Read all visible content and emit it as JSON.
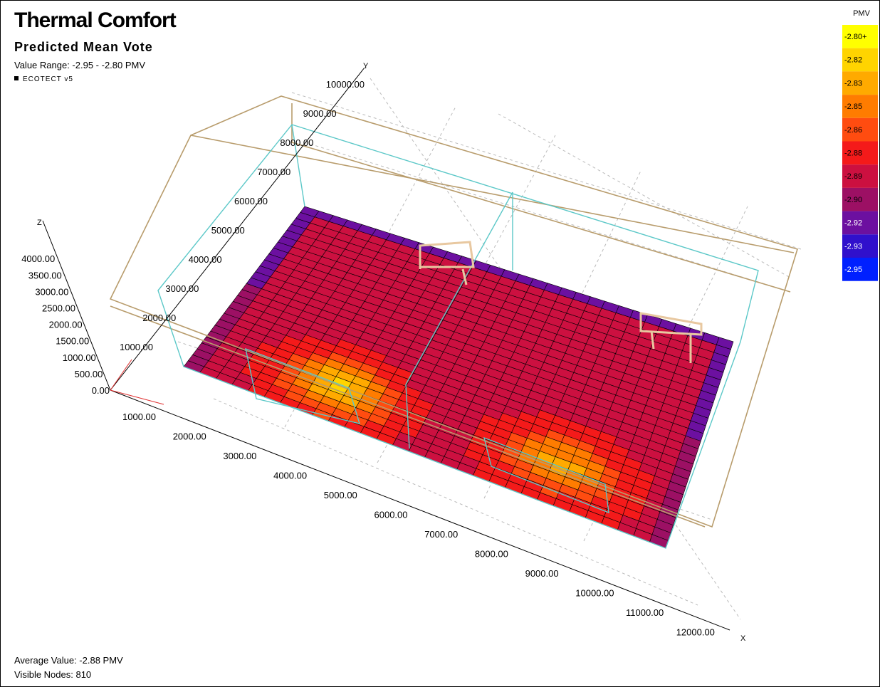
{
  "header": {
    "title": "Thermal Comfort",
    "subtitle": "Predicted Mean Vote",
    "value_range": "Value Range: -2.95 - -2.80 PMV",
    "logo": "ECOTECT v5"
  },
  "legend": {
    "title": "PMV",
    "entries": [
      {
        "label": "-2.80+",
        "color": "#ffff00"
      },
      {
        "label": "-2.82",
        "color": "#ffd400"
      },
      {
        "label": "-2.83",
        "color": "#ffaa00"
      },
      {
        "label": "-2.85",
        "color": "#ff7c00"
      },
      {
        "label": "-2.86",
        "color": "#ff4c10"
      },
      {
        "label": "-2.88",
        "color": "#f41a1a"
      },
      {
        "label": "-2.89",
        "color": "#cc1040"
      },
      {
        "label": "-2.90",
        "color": "#9c1064"
      },
      {
        "label": "-2.92",
        "color": "#6c10a0"
      },
      {
        "label": "-2.93",
        "color": "#3010cc"
      },
      {
        "label": "-2.95",
        "color": "#0020ff"
      }
    ]
  },
  "axes": {
    "x": {
      "name": "X",
      "ticks": [
        "1000.00",
        "2000.00",
        "3000.00",
        "4000.00",
        "5000.00",
        "6000.00",
        "7000.00",
        "8000.00",
        "9000.00",
        "10000.00",
        "11000.00",
        "12000.00"
      ]
    },
    "y": {
      "name": "Y",
      "ticks": [
        "1000.00",
        "2000.00",
        "3000.00",
        "4000.00",
        "5000.00",
        "6000.00",
        "7000.00",
        "8000.00",
        "9000.00",
        "10000.00"
      ]
    },
    "z": {
      "name": "Z",
      "ticks": [
        "0.00",
        "500.00",
        "1000.00",
        "1500.00",
        "2000.00",
        "2500.00",
        "3000.00",
        "3500.00",
        "4000.00"
      ]
    }
  },
  "footer": {
    "average": "Average Value: -2.88 PMV",
    "nodes": "Visible Nodes: 810"
  }
}
